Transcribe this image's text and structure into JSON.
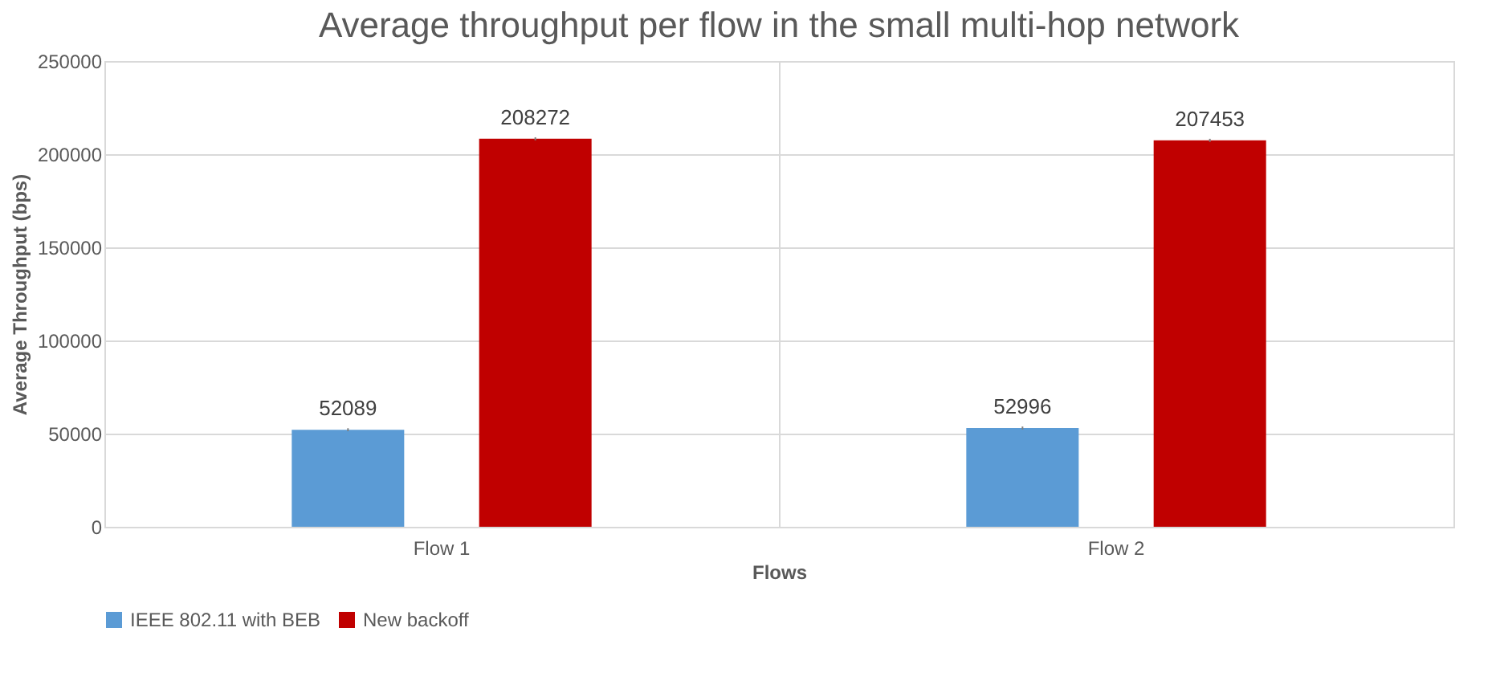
{
  "chart_data": {
    "type": "bar",
    "title": "Average throughput per flow in the small multi-hop network",
    "xlabel": "Flows",
    "ylabel": "Average Throughput (bps)",
    "categories": [
      "Flow 1",
      "Flow 2"
    ],
    "series": [
      {
        "name": "IEEE 802.11 with BEB",
        "color": "#5b9bd5",
        "values": [
          52089,
          52996
        ],
        "errors": [
          800,
          800
        ]
      },
      {
        "name": "New backoff",
        "color": "#c00000",
        "values": [
          208272,
          207453
        ],
        "errors": [
          800,
          800
        ]
      }
    ],
    "ylim": [
      0,
      250000
    ],
    "yticks": [
      0,
      50000,
      100000,
      150000,
      200000,
      250000
    ],
    "grid": true,
    "legend": "bottom",
    "data_labels": true
  }
}
